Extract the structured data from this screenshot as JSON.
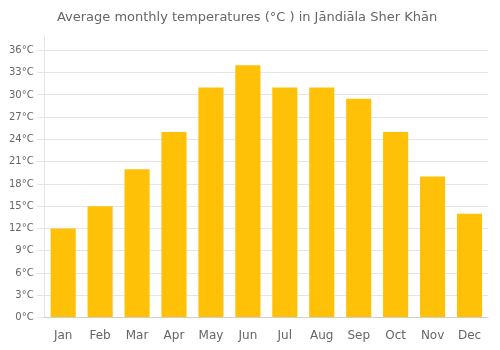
{
  "chart_data": {
    "type": "bar",
    "title": "Average monthly temperatures (°C ) in Jāndiāla Sher Khān",
    "categories": [
      "Jan",
      "Feb",
      "Mar",
      "Apr",
      "May",
      "Jun",
      "Jul",
      "Aug",
      "Sep",
      "Oct",
      "Nov",
      "Dec"
    ],
    "values": [
      12.0,
      15.0,
      20.0,
      25.0,
      31.0,
      34.0,
      31.0,
      31.0,
      29.5,
      25.0,
      19.0,
      14.0
    ],
    "color": "#FFC107",
    "ylim": [
      0,
      38
    ],
    "yticks": [
      {
        "value": 0,
        "label": "0°C"
      },
      {
        "value": 3,
        "label": "3°C"
      },
      {
        "value": 6,
        "label": "6°C"
      },
      {
        "value": 9,
        "label": "9°C"
      },
      {
        "value": 12,
        "label": "12°C"
      },
      {
        "value": 15,
        "label": "15°C"
      },
      {
        "value": 18,
        "label": "18°C"
      },
      {
        "value": 21,
        "label": "21°C"
      },
      {
        "value": 24,
        "label": "24°C"
      },
      {
        "value": 27,
        "label": "27°C"
      },
      {
        "value": 30,
        "label": "30°C"
      },
      {
        "value": 33,
        "label": "33°C"
      },
      {
        "value": 36,
        "label": "36°C"
      }
    ],
    "grid": true
  }
}
